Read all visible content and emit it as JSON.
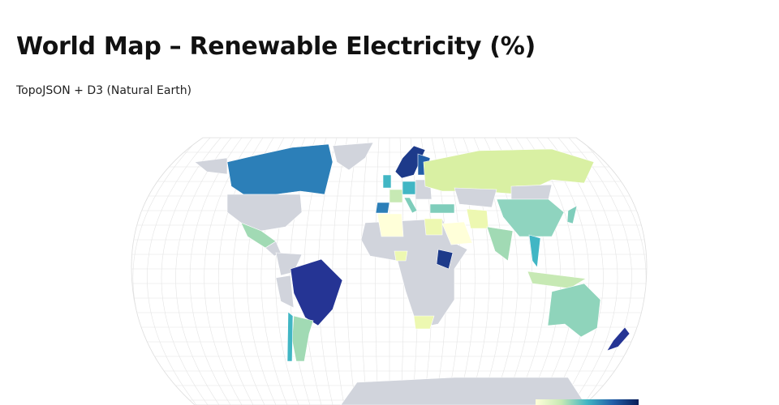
{
  "header": {
    "title": "World Map – Renewable Electricity (%)",
    "subtitle": "TopoJSON + D3 (Natural Earth)"
  }
}
